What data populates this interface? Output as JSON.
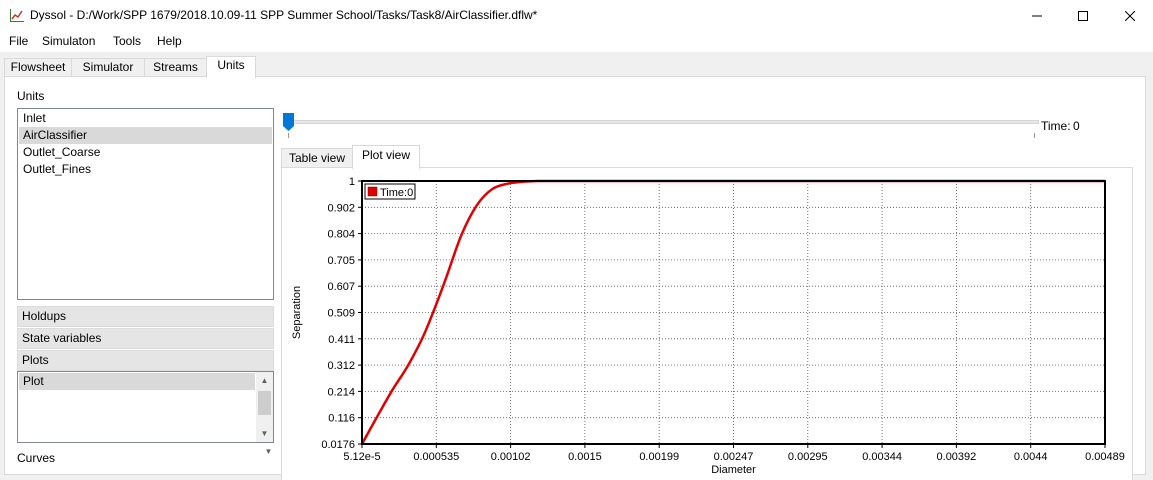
{
  "window": {
    "title": "Dyssol - D:/Work/SPP 1679/2018.10.09-11 SPP Summer School/Tasks/Task8/AirClassifier.dflw*",
    "minimize_icon": "minimize-icon",
    "maximize_icon": "maximize-icon",
    "close_icon": "close-icon"
  },
  "menu": [
    "File",
    "Simulaton",
    "Tools",
    "Help"
  ],
  "tabs": [
    "Flowsheet",
    "Simulator",
    "Streams",
    "Units"
  ],
  "units_panel": {
    "label": "Units",
    "items": [
      "Inlet",
      "AirClassifier",
      "Outlet_Coarse",
      "Outlet_Fines"
    ],
    "selected": "AirClassifier"
  },
  "sections": {
    "holdups": "Holdups",
    "state_variables": "State variables",
    "plots": "Plots",
    "curves": "Curves"
  },
  "plots_list": {
    "items": [
      "Plot"
    ],
    "selected": "Plot"
  },
  "time_slider": {
    "label": "Time:",
    "value": "0",
    "position_fraction": 0
  },
  "view_tabs": [
    "Table view",
    "Plot view"
  ],
  "active_view_tab": "Plot view",
  "colors": {
    "curve": "#e00000",
    "selection": "#d9d9d9",
    "accent_thumb": "#0078d7"
  },
  "chart_data": {
    "type": "line",
    "title": "",
    "xlabel": "Diameter",
    "ylabel": "Separation",
    "x_ticks": [
      "5.12e-5",
      "0.000535",
      "0.00102",
      "0.0015",
      "0.00199",
      "0.00247",
      "0.00295",
      "0.00344",
      "0.00392",
      "0.0044",
      "0.00489"
    ],
    "y_ticks": [
      "0.0176",
      "0.116",
      "0.214",
      "0.312",
      "0.411",
      "0.509",
      "0.607",
      "0.705",
      "0.804",
      "0.902",
      "1"
    ],
    "xlim": [
      5.12e-05,
      0.00489
    ],
    "ylim": [
      0.0176,
      1
    ],
    "grid": true,
    "legend_position": "top-left",
    "series": [
      {
        "name": "Time:0",
        "color": "#e00000",
        "x": [
          5.12e-05,
          0.00015,
          0.00025,
          0.00035,
          0.00045,
          0.000535,
          0.0006,
          0.0007,
          0.0008,
          0.0009,
          0.001,
          0.0011,
          0.0012,
          0.0015,
          0.002,
          0.003,
          0.004,
          0.00489
        ],
        "y": [
          0.0176,
          0.12,
          0.22,
          0.31,
          0.42,
          0.54,
          0.64,
          0.8,
          0.91,
          0.97,
          0.99,
          0.997,
          1.0,
          1.0,
          1.0,
          1.0,
          1.0,
          1.0
        ]
      }
    ]
  }
}
